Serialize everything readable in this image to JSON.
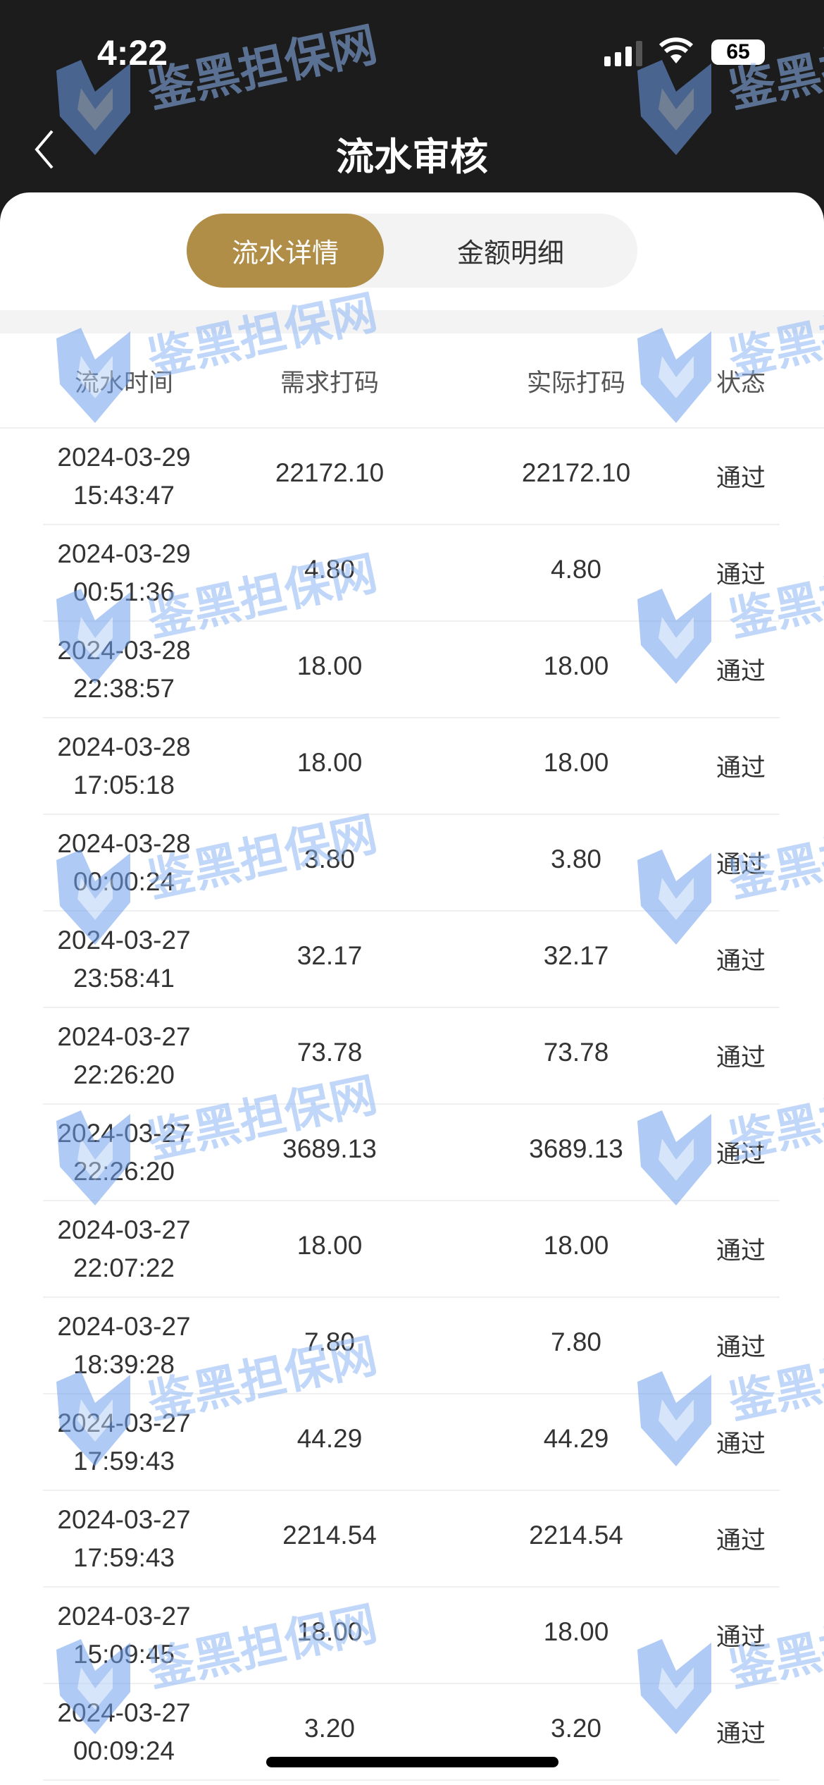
{
  "status_bar": {
    "time": "4:22",
    "battery": "65"
  },
  "header": {
    "title": "流水审核",
    "back_icon": "chevron-left-icon"
  },
  "tabs": [
    {
      "label": "流水详情",
      "active": true
    },
    {
      "label": "金额明细",
      "active": false
    }
  ],
  "accent_color": "#b08e47",
  "table": {
    "columns": [
      "流水时间",
      "需求打码",
      "实际打码",
      "状态"
    ],
    "rows": [
      {
        "date": "2024-03-29",
        "time": "15:43:47",
        "required": "22172.10",
        "actual": "22172.10",
        "status": "通过"
      },
      {
        "date": "2024-03-29",
        "time": "00:51:36",
        "required": "4.80",
        "actual": "4.80",
        "status": "通过"
      },
      {
        "date": "2024-03-28",
        "time": "22:38:57",
        "required": "18.00",
        "actual": "18.00",
        "status": "通过"
      },
      {
        "date": "2024-03-28",
        "time": "17:05:18",
        "required": "18.00",
        "actual": "18.00",
        "status": "通过"
      },
      {
        "date": "2024-03-28",
        "time": "00:00:24",
        "required": "3.80",
        "actual": "3.80",
        "status": "通过"
      },
      {
        "date": "2024-03-27",
        "time": "23:58:41",
        "required": "32.17",
        "actual": "32.17",
        "status": "通过"
      },
      {
        "date": "2024-03-27",
        "time": "22:26:20",
        "required": "73.78",
        "actual": "73.78",
        "status": "通过"
      },
      {
        "date": "2024-03-27",
        "time": "22:26:20",
        "required": "3689.13",
        "actual": "3689.13",
        "status": "通过"
      },
      {
        "date": "2024-03-27",
        "time": "22:07:22",
        "required": "18.00",
        "actual": "18.00",
        "status": "通过"
      },
      {
        "date": "2024-03-27",
        "time": "18:39:28",
        "required": "7.80",
        "actual": "7.80",
        "status": "通过"
      },
      {
        "date": "2024-03-27",
        "time": "17:59:43",
        "required": "44.29",
        "actual": "44.29",
        "status": "通过"
      },
      {
        "date": "2024-03-27",
        "time": "17:59:43",
        "required": "2214.54",
        "actual": "2214.54",
        "status": "通过"
      },
      {
        "date": "2024-03-27",
        "time": "15:09:45",
        "required": "18.00",
        "actual": "18.00",
        "status": "通过"
      },
      {
        "date": "2024-03-27",
        "time": "00:09:24",
        "required": "3.20",
        "actual": "3.20",
        "status": "通过"
      }
    ]
  },
  "watermark": "鉴黑担保网"
}
